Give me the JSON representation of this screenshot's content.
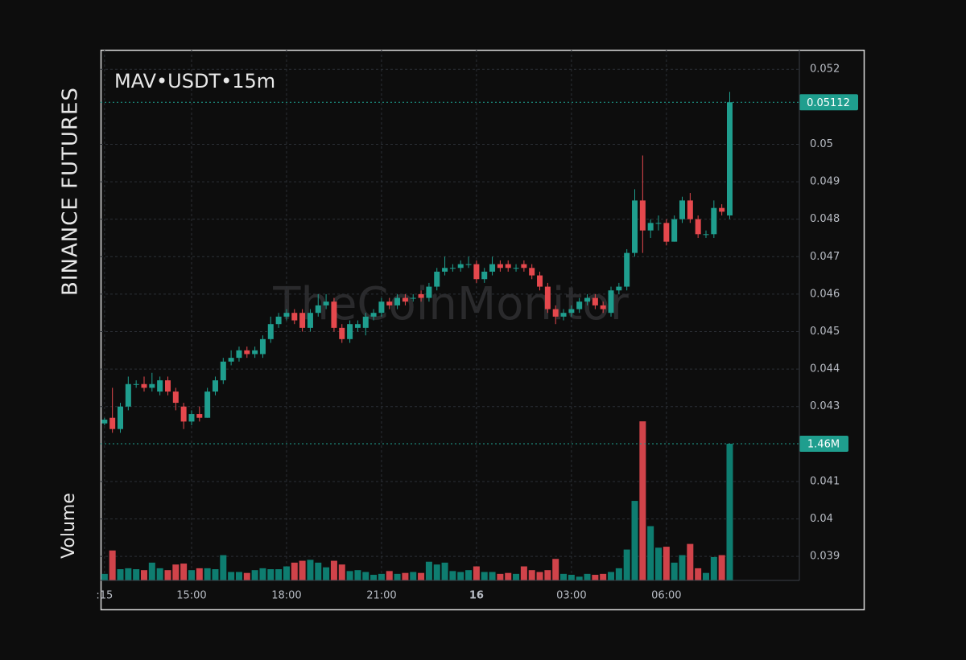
{
  "chart_data": {
    "type": "candlestick",
    "title": "MAV•USDT•15m",
    "side_label": "BINANCE FUTURES",
    "volume_label": "Volume",
    "watermark": "TheCoinMonitor",
    "x": [
      12.25,
      12.5,
      12.75,
      13,
      13.25,
      13.5,
      13.75,
      14,
      14.25,
      14.5,
      14.75,
      15,
      15.25,
      15.5,
      15.75,
      16,
      16.25,
      16.5,
      16.75,
      17,
      17.25,
      17.5,
      17.75,
      18,
      18.25,
      18.5,
      18.75,
      19,
      19.25,
      19.5,
      19.75,
      20,
      20.25,
      20.5,
      20.75,
      21,
      21.25,
      21.5,
      21.75,
      22,
      22.25,
      22.5,
      22.75,
      23,
      23.25,
      23.5,
      23.75,
      24,
      24.25,
      24.5,
      24.75,
      25,
      25.25,
      25.5,
      25.75,
      26,
      26.25,
      26.5,
      26.75,
      27,
      27.25,
      27.5,
      27.75,
      28,
      28.25,
      28.5,
      28.75,
      29,
      29.25,
      29.5,
      29.75,
      30,
      30.25,
      30.5,
      30.75,
      31,
      31.25,
      31.5,
      31.75,
      32
    ],
    "open": [
      0.04255,
      0.0427,
      0.0424,
      0.043,
      0.0436,
      0.0436,
      0.0435,
      0.0434,
      0.0437,
      0.0434,
      0.043,
      0.0426,
      0.0428,
      0.0427,
      0.0434,
      0.0437,
      0.0442,
      0.0443,
      0.0445,
      0.0444,
      0.0444,
      0.0448,
      0.0452,
      0.0454,
      0.0455,
      0.0455,
      0.0451,
      0.0455,
      0.0457,
      0.0458,
      0.0451,
      0.0448,
      0.0451,
      0.0451,
      0.0454,
      0.0455,
      0.0458,
      0.0457,
      0.0459,
      0.0459,
      0.046,
      0.0459,
      0.0462,
      0.0466,
      0.0467,
      0.0467,
      0.0468,
      0.0468,
      0.0464,
      0.0466,
      0.0468,
      0.0468,
      0.0467,
      0.0468,
      0.0467,
      0.0465,
      0.0462,
      0.0456,
      0.0454,
      0.0455,
      0.0456,
      0.0458,
      0.0459,
      0.0457,
      0.0455,
      0.0461,
      0.0462,
      0.0471,
      0.0485,
      0.0477,
      0.0479,
      0.0479,
      0.0474,
      0.048,
      0.0485,
      0.048,
      0.0476,
      0.0476,
      0.0483,
      0.0481
    ],
    "high": [
      0.0427,
      0.0435,
      0.0431,
      0.0438,
      0.0437,
      0.0438,
      0.0439,
      0.0438,
      0.0438,
      0.0435,
      0.0431,
      0.0429,
      0.043,
      0.0435,
      0.0438,
      0.0443,
      0.0445,
      0.0446,
      0.0446,
      0.0446,
      0.0449,
      0.0454,
      0.0455,
      0.0456,
      0.0456,
      0.0456,
      0.0456,
      0.046,
      0.046,
      0.0459,
      0.0452,
      0.0453,
      0.0453,
      0.0455,
      0.0456,
      0.0459,
      0.0459,
      0.046,
      0.046,
      0.046,
      0.0461,
      0.0463,
      0.0467,
      0.047,
      0.0468,
      0.0469,
      0.047,
      0.0469,
      0.0467,
      0.047,
      0.0469,
      0.0469,
      0.0468,
      0.0469,
      0.0468,
      0.0466,
      0.0463,
      0.0457,
      0.0456,
      0.0457,
      0.0459,
      0.046,
      0.046,
      0.0458,
      0.0462,
      0.0463,
      0.0472,
      0.0488,
      0.0497,
      0.048,
      0.0481,
      0.048,
      0.0481,
      0.0486,
      0.0487,
      0.0481,
      0.0477,
      0.0485,
      0.0484,
      0.0514
    ],
    "low": [
      0.0425,
      0.0423,
      0.0423,
      0.0429,
      0.0435,
      0.0434,
      0.0434,
      0.0433,
      0.0433,
      0.0429,
      0.0424,
      0.0425,
      0.0426,
      0.0427,
      0.0433,
      0.0436,
      0.0441,
      0.0442,
      0.0443,
      0.0443,
      0.0443,
      0.0447,
      0.0451,
      0.0453,
      0.0452,
      0.045,
      0.045,
      0.0454,
      0.0456,
      0.045,
      0.0447,
      0.0447,
      0.045,
      0.0449,
      0.0453,
      0.0454,
      0.0456,
      0.0456,
      0.0457,
      0.0458,
      0.0458,
      0.0458,
      0.0461,
      0.0465,
      0.0466,
      0.0466,
      0.0467,
      0.0463,
      0.0463,
      0.0465,
      0.0466,
      0.0466,
      0.0466,
      0.0466,
      0.0464,
      0.0461,
      0.0455,
      0.0452,
      0.0453,
      0.0454,
      0.0455,
      0.0457,
      0.0456,
      0.0455,
      0.0454,
      0.046,
      0.0461,
      0.047,
      0.0471,
      0.0475,
      0.0477,
      0.0473,
      0.0474,
      0.0479,
      0.0479,
      0.0475,
      0.0475,
      0.0475,
      0.0481,
      0.048
    ],
    "close": [
      0.04265,
      0.0424,
      0.043,
      0.0436,
      0.0436,
      0.0435,
      0.0436,
      0.0437,
      0.0434,
      0.0431,
      0.0426,
      0.0428,
      0.0427,
      0.0434,
      0.0437,
      0.0442,
      0.0443,
      0.0445,
      0.0444,
      0.0445,
      0.0448,
      0.0452,
      0.0454,
      0.0455,
      0.0453,
      0.0451,
      0.0455,
      0.0457,
      0.0458,
      0.0451,
      0.0448,
      0.0452,
      0.0452,
      0.0454,
      0.0455,
      0.0458,
      0.0457,
      0.0459,
      0.0458,
      0.0459,
      0.0459,
      0.0462,
      0.0466,
      0.0467,
      0.0467,
      0.0468,
      0.0468,
      0.0464,
      0.0466,
      0.0468,
      0.0467,
      0.0467,
      0.0467,
      0.0467,
      0.0465,
      0.0462,
      0.0456,
      0.0454,
      0.0455,
      0.0456,
      0.0458,
      0.0459,
      0.0457,
      0.0456,
      0.0461,
      0.0462,
      0.0471,
      0.0485,
      0.0477,
      0.0479,
      0.0479,
      0.0474,
      0.048,
      0.0485,
      0.048,
      0.0476,
      0.0476,
      0.0483,
      0.0482,
      0.05112
    ],
    "volume": [
      70000,
      320000,
      120000,
      130000,
      120000,
      110000,
      190000,
      130000,
      110000,
      170000,
      180000,
      110000,
      130000,
      130000,
      120000,
      270000,
      90000,
      90000,
      80000,
      110000,
      130000,
      120000,
      120000,
      150000,
      190000,
      210000,
      220000,
      190000,
      140000,
      210000,
      170000,
      100000,
      110000,
      90000,
      60000,
      70000,
      100000,
      70000,
      80000,
      90000,
      80000,
      200000,
      170000,
      190000,
      100000,
      90000,
      110000,
      150000,
      90000,
      90000,
      70000,
      80000,
      70000,
      150000,
      110000,
      90000,
      110000,
      230000,
      70000,
      60000,
      40000,
      70000,
      60000,
      70000,
      90000,
      130000,
      330000,
      850000,
      1700000,
      580000,
      350000,
      360000,
      190000,
      270000,
      390000,
      130000,
      80000,
      250000,
      270000,
      1460000
    ],
    "volume_value_labels": [
      null,
      null,
      null,
      null,
      null,
      null,
      null,
      null,
      null,
      null,
      null,
      null,
      null,
      null,
      null,
      null,
      null,
      null,
      null,
      null,
      null,
      null,
      null,
      null,
      null,
      null,
      null,
      null,
      null,
      null,
      null,
      null,
      null,
      null,
      null,
      null,
      null,
      null,
      null,
      null,
      null,
      null,
      null,
      null,
      null,
      null,
      null,
      null,
      null,
      null,
      null,
      null,
      null,
      null,
      null,
      null,
      null,
      null,
      null,
      null,
      null,
      null,
      null,
      null,
      null,
      null,
      null,
      null,
      null,
      null,
      null,
      null,
      null,
      null,
      null,
      null,
      null,
      null,
      null,
      "1.46M"
    ],
    "up_color": "#1f9e8e",
    "down_color": "#e5484d",
    "volume_up_color": "#0e7d70",
    "volume_down_color": "#d0434a",
    "xlim": [
      12.127,
      34.2
    ],
    "xticks": [
      {
        "value": 12.25,
        "label": ":15"
      },
      {
        "value": 15,
        "label": "15:00"
      },
      {
        "value": 18,
        "label": "18:00"
      },
      {
        "value": 21,
        "label": "21:00"
      },
      {
        "value": 24,
        "label": "16"
      },
      {
        "value": 27,
        "label": "03:00"
      },
      {
        "value": 30,
        "label": "06:00"
      }
    ],
    "ylim": [
      0.03836,
      0.05252
    ],
    "yticks": [
      0.052,
      0.05,
      0.049,
      0.048,
      0.047,
      0.046,
      0.045,
      0.044,
      0.043,
      0.041,
      0.04,
      0.039
    ],
    "y2lim": [
      0,
      5670000
    ],
    "grid": true
  }
}
